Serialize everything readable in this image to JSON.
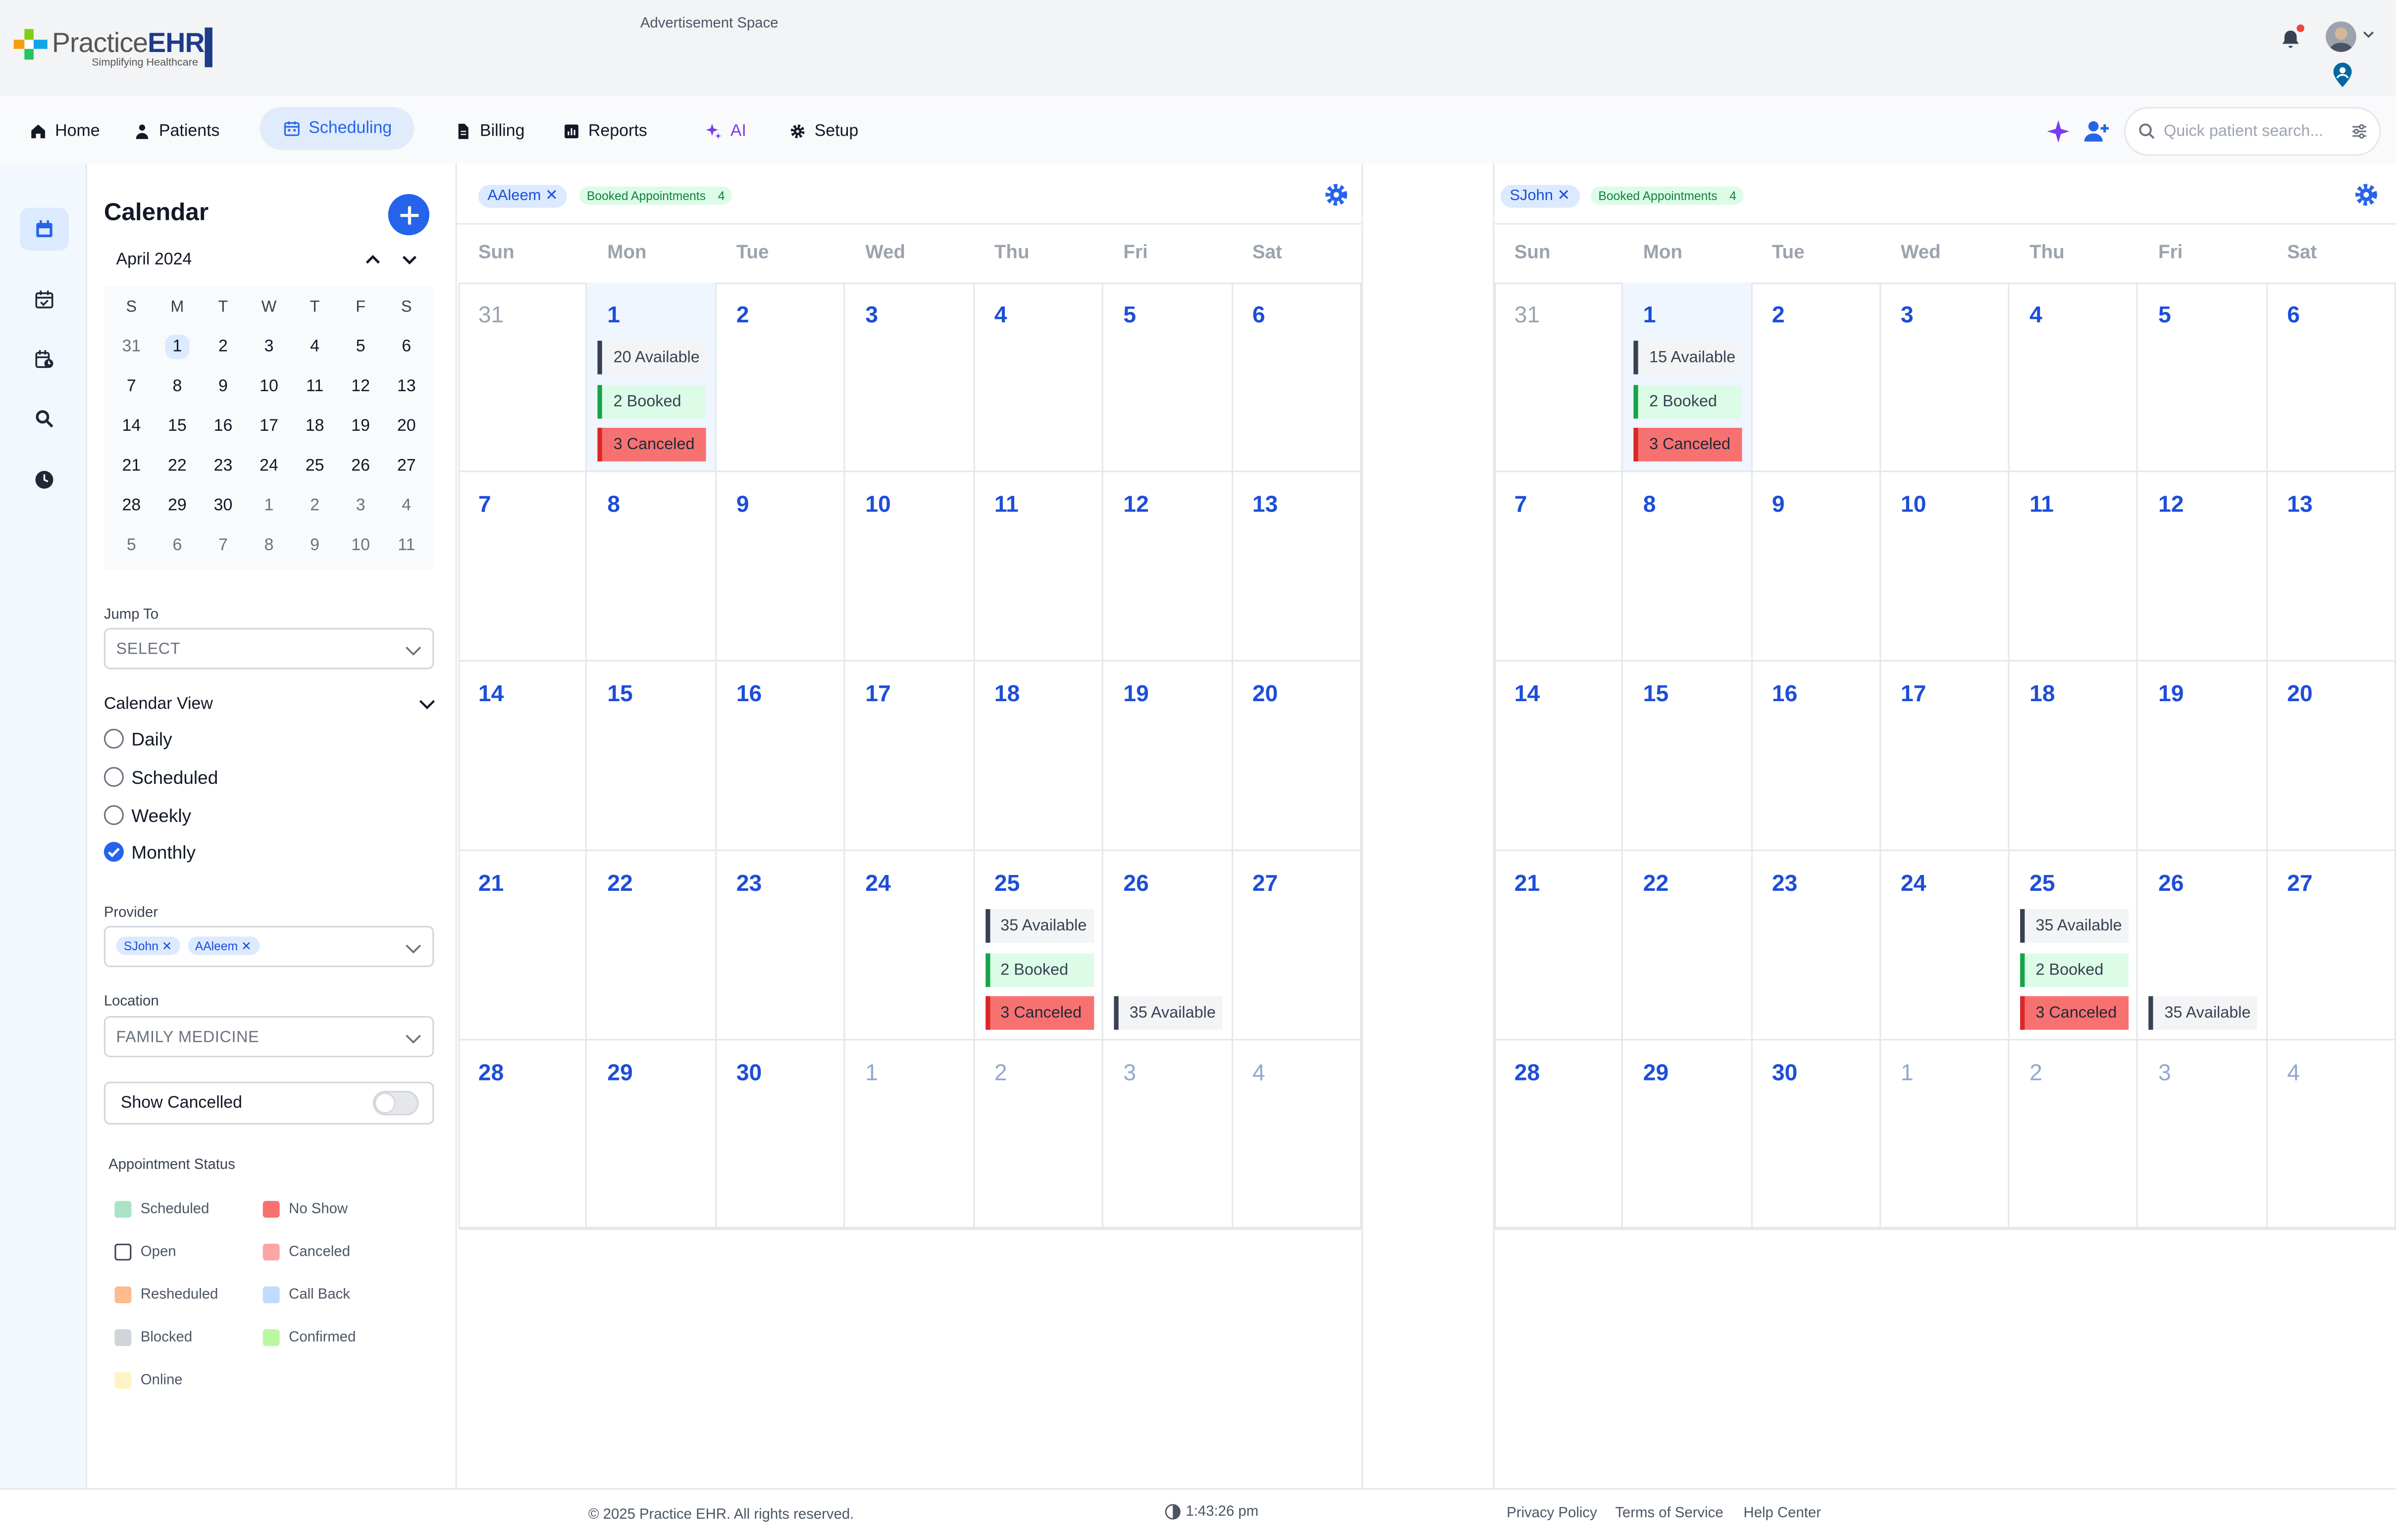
{
  "app": {
    "logo_text_practice": "Practice",
    "logo_text_ehr": "EHR",
    "logo_tagline": "Simplifying Healthcare",
    "advertisement": "Advertisement Space"
  },
  "nav": {
    "items": [
      {
        "label": "Home",
        "icon": "home-icon"
      },
      {
        "label": "Patients",
        "icon": "user-icon"
      },
      {
        "label": "Scheduling",
        "icon": "calendar-icon"
      },
      {
        "label": "Billing",
        "icon": "file-icon"
      },
      {
        "label": "Reports",
        "icon": "chart-icon"
      },
      {
        "label": "AI",
        "icon": "sparkle-icon"
      },
      {
        "label": "Setup",
        "icon": "gear-icon"
      }
    ],
    "search_placeholder": "Quick patient search..."
  },
  "sidebar": {
    "title": "Calendar",
    "mini_calendar": {
      "month": "April 2024",
      "weekdays": [
        "S",
        "M",
        "T",
        "W",
        "T",
        "F",
        "S"
      ],
      "weeks": [
        [
          "31",
          "1",
          "2",
          "3",
          "4",
          "5",
          "6"
        ],
        [
          "7",
          "8",
          "9",
          "10",
          "11",
          "12",
          "13"
        ],
        [
          "14",
          "15",
          "16",
          "17",
          "18",
          "19",
          "20"
        ],
        [
          "21",
          "22",
          "23",
          "24",
          "25",
          "26",
          "27"
        ],
        [
          "28",
          "29",
          "30",
          "1",
          "2",
          "3",
          "4"
        ],
        [
          "5",
          "6",
          "7",
          "8",
          "9",
          "10",
          "11"
        ]
      ]
    },
    "jump_to": {
      "label": "Jump To",
      "value": "SELECT"
    },
    "calendar_view": {
      "label": "Calendar View",
      "options": [
        "Daily",
        "Scheduled",
        "Weekly",
        "Monthly"
      ],
      "selected": "Monthly"
    },
    "provider": {
      "label": "Provider",
      "chips": [
        "SJohn ✕",
        "AAleem ✕"
      ]
    },
    "location": {
      "label": "Location",
      "value": "FAMILY MEDICINE"
    },
    "show_cancelled": {
      "label": "Show Cancelled",
      "on": false
    },
    "status_legend": {
      "title": "Appointment Status",
      "items": [
        {
          "label": "Scheduled",
          "color": "#a7e3c4"
        },
        {
          "label": "No Show",
          "color": "#f87171"
        },
        {
          "label": "Open",
          "color": "#ffffff"
        },
        {
          "label": "Canceled",
          "color": "#fca5a5"
        },
        {
          "label": "Resheduled",
          "color": "#fdba8c"
        },
        {
          "label": "Call Back",
          "color": "#bfdbfe"
        },
        {
          "label": "Blocked",
          "color": "#d1d5db"
        },
        {
          "label": "Confirmed",
          "color": "#bbf7a0"
        },
        {
          "label": "Online",
          "color": "#fef3c7"
        }
      ]
    }
  },
  "calendars": [
    {
      "provider_chip": "AAleem ✕",
      "booked_label": "Booked Appointments",
      "booked_count": "4",
      "weekdays": [
        "Sun",
        "Mon",
        "Tue",
        "Wed",
        "Thu",
        "Fri",
        "Sat"
      ],
      "weeks": [
        [
          "31",
          "1",
          "2",
          "3",
          "4",
          "5",
          "6"
        ],
        [
          "7",
          "8",
          "9",
          "10",
          "11",
          "12",
          "13"
        ],
        [
          "14",
          "15",
          "16",
          "17",
          "18",
          "19",
          "20"
        ],
        [
          "21",
          "22",
          "23",
          "24",
          "25",
          "26",
          "27"
        ],
        [
          "28",
          "29",
          "30",
          "1",
          "2",
          "3",
          "4"
        ]
      ],
      "events": {
        "1": [
          "20 Available",
          "2 Booked",
          "3 Canceled"
        ],
        "25": [
          "35 Available",
          "2 Booked",
          "3 Canceled"
        ],
        "26": [
          "35 Available"
        ]
      }
    },
    {
      "provider_chip": "SJohn ✕",
      "booked_label": "Booked Appointments",
      "booked_count": "4",
      "weekdays": [
        "Sun",
        "Mon",
        "Tue",
        "Wed",
        "Thu",
        "Fri",
        "Sat"
      ],
      "weeks": [
        [
          "31",
          "1",
          "2",
          "3",
          "4",
          "5",
          "6"
        ],
        [
          "7",
          "8",
          "9",
          "10",
          "11",
          "12",
          "13"
        ],
        [
          "14",
          "15",
          "16",
          "17",
          "18",
          "19",
          "20"
        ],
        [
          "21",
          "22",
          "23",
          "24",
          "25",
          "26",
          "27"
        ],
        [
          "28",
          "29",
          "30",
          "1",
          "2",
          "3",
          "4"
        ]
      ],
      "events": {
        "1": [
          "15 Available",
          "2 Booked",
          "3 Canceled"
        ],
        "25": [
          "35 Available",
          "2 Booked",
          "3 Canceled"
        ],
        "26": [
          "35 Available"
        ]
      }
    }
  ],
  "footer": {
    "copyright": "© 2025 Practice EHR. All rights reserved.",
    "time": "1:43:26 pm",
    "links": [
      "Privacy Policy",
      "Terms of Service",
      "Help Center"
    ]
  }
}
